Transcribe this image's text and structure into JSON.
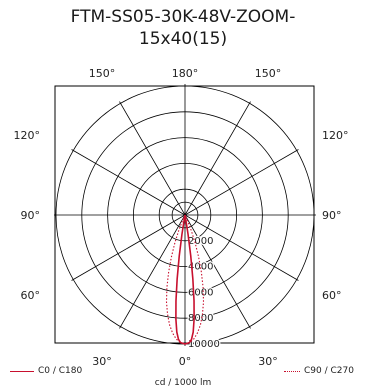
{
  "title": {
    "line1": "FTM-SS05-30K-48V-ZOOM-",
    "line2": "15x40(15)"
  },
  "chart_data": {
    "type": "polar",
    "title": "FTM-SS05-30K-48V-ZOOM-15x40(15)",
    "angle_labels": [
      {
        "text": "180°",
        "angle": 180
      },
      {
        "text": "150°",
        "angle": 150
      },
      {
        "text": "150°",
        "angle": -150
      },
      {
        "text": "120°",
        "angle": 120
      },
      {
        "text": "120°",
        "angle": -120
      },
      {
        "text": "90°",
        "angle": 90
      },
      {
        "text": "90°",
        "angle": -90
      },
      {
        "text": "60°",
        "angle": 60
      },
      {
        "text": "60°",
        "angle": -60
      },
      {
        "text": "30°",
        "angle": 30
      },
      {
        "text": "0°",
        "angle": 0
      },
      {
        "text": "30°",
        "angle": -30
      }
    ],
    "radial_ticks": [
      "2000",
      "4000",
      "6000",
      "8000",
      "10000"
    ],
    "rmax": 10000,
    "unit_label": "cd / 1000 lm",
    "series": [
      {
        "name": "C0 / C180",
        "style": "solid",
        "color": "#c8102e",
        "points": [
          [
            -12,
            0
          ],
          [
            -10,
            200
          ],
          [
            -9,
            1500
          ],
          [
            -8,
            3200
          ],
          [
            -7,
            5000
          ],
          [
            -6,
            6700
          ],
          [
            -5,
            8100
          ],
          [
            -4,
            9100
          ],
          [
            -3,
            9650
          ],
          [
            -2,
            9900
          ],
          [
            0,
            10000
          ],
          [
            2,
            9900
          ],
          [
            3,
            9650
          ],
          [
            4,
            9100
          ],
          [
            5,
            8100
          ],
          [
            6,
            6700
          ],
          [
            7,
            5000
          ],
          [
            8,
            3200
          ],
          [
            9,
            1500
          ],
          [
            10,
            200
          ],
          [
            12,
            0
          ]
        ]
      },
      {
        "name": "C90 / C270",
        "style": "dotted",
        "color": "#c8102e",
        "points": [
          [
            -26,
            0
          ],
          [
            -24,
            500
          ],
          [
            -22,
            1300
          ],
          [
            -20,
            2300
          ],
          [
            -18,
            3400
          ],
          [
            -16,
            4600
          ],
          [
            -14,
            5800
          ],
          [
            -12,
            6900
          ],
          [
            -10,
            7800
          ],
          [
            -8,
            8600
          ],
          [
            -6,
            9200
          ],
          [
            -4,
            9650
          ],
          [
            -2,
            9900
          ],
          [
            0,
            10000
          ],
          [
            2,
            9900
          ],
          [
            4,
            9650
          ],
          [
            6,
            9200
          ],
          [
            8,
            8600
          ],
          [
            10,
            7800
          ],
          [
            12,
            6900
          ],
          [
            14,
            5800
          ],
          [
            16,
            4600
          ],
          [
            18,
            3400
          ],
          [
            20,
            2300
          ],
          [
            22,
            1300
          ],
          [
            24,
            500
          ],
          [
            26,
            0
          ]
        ]
      }
    ]
  }
}
